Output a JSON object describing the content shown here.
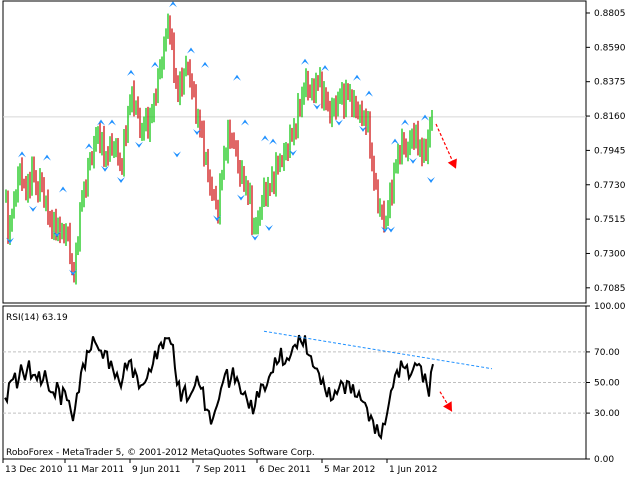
{
  "app": {
    "footer_text": "RoboForex - MetaTrader 5, © 2001-2012 MetaQuotes Software Corp."
  },
  "colors": {
    "background": "#ffffff",
    "bull_candle": "#00c000",
    "bear_candle": "#cc0000",
    "fractal_marker": "#1e90ff",
    "rsi_line": "#000000",
    "trendline": "#1e90ff",
    "forecast_arrow": "#ff0000",
    "grid": "#c0c0c0"
  },
  "chart_data": [
    {
      "type": "candlestick",
      "title": "",
      "y_ticks": [
        "0.8805",
        "0.8590",
        "0.8375",
        "0.8160",
        "0.7945",
        "0.7730",
        "0.7515",
        "0.7300",
        "0.7085"
      ],
      "ylim": [
        0.699,
        0.888
      ],
      "x_ticks": [
        "13 Dec 2010",
        "11 Mar 2011",
        "9 Jun 2011",
        "7 Sep 2011",
        "6 Dec 2011",
        "5 Mar 2012",
        "1 Jun 2012"
      ],
      "close_path": [
        [
          0,
          0.765
        ],
        [
          4,
          0.742
        ],
        [
          8,
          0.758
        ],
        [
          12,
          0.775
        ],
        [
          16,
          0.783
        ],
        [
          20,
          0.766
        ],
        [
          24,
          0.775
        ],
        [
          28,
          0.782
        ],
        [
          32,
          0.768
        ],
        [
          36,
          0.776
        ],
        [
          40,
          0.762
        ],
        [
          44,
          0.753
        ],
        [
          48,
          0.744
        ],
        [
          52,
          0.75
        ],
        [
          56,
          0.739
        ],
        [
          60,
          0.746
        ],
        [
          64,
          0.737
        ],
        [
          68,
          0.712
        ],
        [
          72,
          0.735
        ],
        [
          76,
          0.762
        ],
        [
          80,
          0.772
        ],
        [
          84,
          0.785
        ],
        [
          88,
          0.795
        ],
        [
          92,
          0.806
        ],
        [
          96,
          0.8
        ],
        [
          100,
          0.79
        ],
        [
          104,
          0.793
        ],
        [
          108,
          0.8
        ],
        [
          112,
          0.792
        ],
        [
          116,
          0.782
        ],
        [
          120,
          0.803
        ],
        [
          124,
          0.823
        ],
        [
          128,
          0.83
        ],
        [
          132,
          0.818
        ],
        [
          136,
          0.805
        ],
        [
          140,
          0.813
        ],
        [
          144,
          0.81
        ],
        [
          148,
          0.822
        ],
        [
          152,
          0.835
        ],
        [
          156,
          0.85
        ],
        [
          160,
          0.862
        ],
        [
          164,
          0.878
        ],
        [
          168,
          0.85
        ],
        [
          172,
          0.83
        ],
        [
          176,
          0.836
        ],
        [
          180,
          0.846
        ],
        [
          184,
          0.845
        ],
        [
          188,
          0.83
        ],
        [
          192,
          0.815
        ],
        [
          196,
          0.808
        ],
        [
          200,
          0.79
        ],
        [
          204,
          0.775
        ],
        [
          208,
          0.768
        ],
        [
          212,
          0.755
        ],
        [
          216,
          0.775
        ],
        [
          220,
          0.795
        ],
        [
          224,
          0.805
        ],
        [
          228,
          0.8
        ],
        [
          232,
          0.79
        ],
        [
          236,
          0.778
        ],
        [
          240,
          0.773
        ],
        [
          244,
          0.768
        ],
        [
          248,
          0.745
        ],
        [
          252,
          0.748
        ],
        [
          256,
          0.76
        ],
        [
          260,
          0.77
        ],
        [
          264,
          0.77
        ],
        [
          268,
          0.776
        ],
        [
          272,
          0.785
        ],
        [
          276,
          0.788
        ],
        [
          280,
          0.792
        ],
        [
          284,
          0.8
        ],
        [
          288,
          0.805
        ],
        [
          292,
          0.815
        ],
        [
          296,
          0.825
        ],
        [
          300,
          0.838
        ],
        [
          304,
          0.832
        ],
        [
          308,
          0.83
        ],
        [
          312,
          0.84
        ],
        [
          316,
          0.833
        ],
        [
          320,
          0.828
        ],
        [
          324,
          0.818
        ],
        [
          328,
          0.82
        ],
        [
          332,
          0.824
        ],
        [
          336,
          0.83
        ],
        [
          340,
          0.826
        ],
        [
          344,
          0.832
        ],
        [
          348,
          0.822
        ],
        [
          352,
          0.82
        ],
        [
          356,
          0.816
        ],
        [
          360,
          0.815
        ],
        [
          364,
          0.805
        ],
        [
          368,
          0.78
        ],
        [
          372,
          0.765
        ],
        [
          376,
          0.756
        ],
        [
          380,
          0.748
        ],
        [
          384,
          0.762
        ],
        [
          388,
          0.776
        ],
        [
          392,
          0.788
        ],
        [
          396,
          0.8
        ],
        [
          400,
          0.794
        ],
        [
          404,
          0.798
        ],
        [
          408,
          0.806
        ],
        [
          412,
          0.8
        ],
        [
          416,
          0.795
        ],
        [
          420,
          0.79
        ],
        [
          424,
          0.808
        ],
        [
          428,
          0.815
        ]
      ],
      "fractals": {
        "up": [
          [
            17,
            0.792
          ],
          [
            42,
            0.79
          ],
          [
            58,
            0.77
          ],
          [
            84,
            0.797
          ],
          [
            96,
            0.812
          ],
          [
            107,
            0.812
          ],
          [
            126,
            0.843
          ],
          [
            150,
            0.848
          ],
          [
            168,
            0.886
          ],
          [
            186,
            0.857
          ],
          [
            200,
            0.848
          ],
          [
            232,
            0.84
          ],
          [
            240,
            0.812
          ],
          [
            260,
            0.802
          ],
          [
            268,
            0.8
          ],
          [
            300,
            0.85
          ],
          [
            320,
            0.846
          ],
          [
            352,
            0.84
          ],
          [
            364,
            0.83
          ],
          [
            390,
            0.8
          ],
          [
            400,
            0.812
          ],
          [
            420,
            0.815
          ]
        ],
        "down": [
          [
            5,
            0.738
          ],
          [
            28,
            0.758
          ],
          [
            52,
            0.742
          ],
          [
            68,
            0.718
          ],
          [
            100,
            0.783
          ],
          [
            116,
            0.776
          ],
          [
            134,
            0.798
          ],
          [
            172,
            0.792
          ],
          [
            192,
            0.806
          ],
          [
            212,
            0.752
          ],
          [
            236,
            0.765
          ],
          [
            250,
            0.74
          ],
          [
            264,
            0.746
          ],
          [
            288,
            0.793
          ],
          [
            312,
            0.822
          ],
          [
            334,
            0.812
          ],
          [
            358,
            0.808
          ],
          [
            380,
            0.745
          ],
          [
            386,
            0.745
          ],
          [
            408,
            0.788
          ],
          [
            426,
            0.776
          ]
        ]
      },
      "forecast_arrow": {
        "from": [
          436,
          0.811
        ],
        "to": [
          456,
          0.788
        ]
      }
    },
    {
      "type": "line",
      "indicator_label": "RSI(14) 63.19",
      "y_ticks": [
        "100.00",
        "70.00",
        "50.00",
        "30.00",
        "0.00"
      ],
      "ylim": [
        0,
        100
      ],
      "series": [
        {
          "values": [
            [
              0,
              38
            ],
            [
              4,
              46
            ],
            [
              8,
              56
            ],
            [
              12,
              48
            ],
            [
              16,
              60
            ],
            [
              20,
              53
            ],
            [
              24,
              62
            ],
            [
              28,
              52
            ],
            [
              32,
              56
            ],
            [
              36,
              50
            ],
            [
              40,
              56
            ],
            [
              44,
              46
            ],
            [
              48,
              41
            ],
            [
              52,
              48
            ],
            [
              56,
              40
            ],
            [
              60,
              45
            ],
            [
              64,
              36
            ],
            [
              68,
              26
            ],
            [
              72,
              40
            ],
            [
              76,
              55
            ],
            [
              80,
              64
            ],
            [
              84,
              70
            ],
            [
              88,
              78
            ],
            [
              92,
              75
            ],
            [
              96,
              68
            ],
            [
              100,
              70
            ],
            [
              104,
              64
            ],
            [
              108,
              58
            ],
            [
              112,
              54
            ],
            [
              116,
              48
            ],
            [
              120,
              60
            ],
            [
              124,
              64
            ],
            [
              128,
              58
            ],
            [
              132,
              53
            ],
            [
              136,
              46
            ],
            [
              140,
              51
            ],
            [
              144,
              56
            ],
            [
              148,
              63
            ],
            [
              152,
              70
            ],
            [
              156,
              74
            ],
            [
              160,
              77
            ],
            [
              164,
              80
            ],
            [
              168,
              72
            ],
            [
              172,
              50
            ],
            [
              176,
              42
            ],
            [
              180,
              45
            ],
            [
              184,
              38
            ],
            [
              188,
              46
            ],
            [
              192,
              52
            ],
            [
              196,
              48
            ],
            [
              200,
              36
            ],
            [
              204,
              28
            ],
            [
              208,
              25
            ],
            [
              212,
              36
            ],
            [
              216,
              44
            ],
            [
              220,
              58
            ],
            [
              224,
              50
            ],
            [
              228,
              56
            ],
            [
              232,
              52
            ],
            [
              236,
              44
            ],
            [
              240,
              42
            ],
            [
              244,
              36
            ],
            [
              248,
              32
            ],
            [
              252,
              40
            ],
            [
              256,
              48
            ],
            [
              260,
              46
            ],
            [
              264,
              52
            ],
            [
              268,
              60
            ],
            [
              272,
              64
            ],
            [
              276,
              68
            ],
            [
              280,
              62
            ],
            [
              284,
              66
            ],
            [
              288,
              72
            ],
            [
              292,
              76
            ],
            [
              296,
              78
            ],
            [
              300,
              76
            ],
            [
              304,
              68
            ],
            [
              308,
              62
            ],
            [
              312,
              58
            ],
            [
              316,
              52
            ],
            [
              320,
              46
            ],
            [
              324,
              42
            ],
            [
              328,
              40
            ],
            [
              332,
              44
            ],
            [
              336,
              50
            ],
            [
              340,
              46
            ],
            [
              344,
              50
            ],
            [
              348,
              44
            ],
            [
              352,
              42
            ],
            [
              356,
              40
            ],
            [
              360,
              36
            ],
            [
              364,
              28
            ],
            [
              368,
              24
            ],
            [
              372,
              18
            ],
            [
              376,
              16
            ],
            [
              380,
              24
            ],
            [
              384,
              36
            ],
            [
              388,
              50
            ],
            [
              392,
              56
            ],
            [
              396,
              60
            ],
            [
              400,
              62
            ],
            [
              404,
              54
            ],
            [
              408,
              58
            ],
            [
              412,
              64
            ],
            [
              416,
              58
            ],
            [
              420,
              52
            ],
            [
              424,
              44
            ],
            [
              428,
              63
            ]
          ]
        }
      ],
      "trendline": {
        "from": [
          264,
          83.5
        ],
        "to": [
          492,
          59
        ]
      },
      "forecast_arrow": {
        "from": [
          440,
          44
        ],
        "to": [
          452,
          31
        ]
      }
    }
  ]
}
